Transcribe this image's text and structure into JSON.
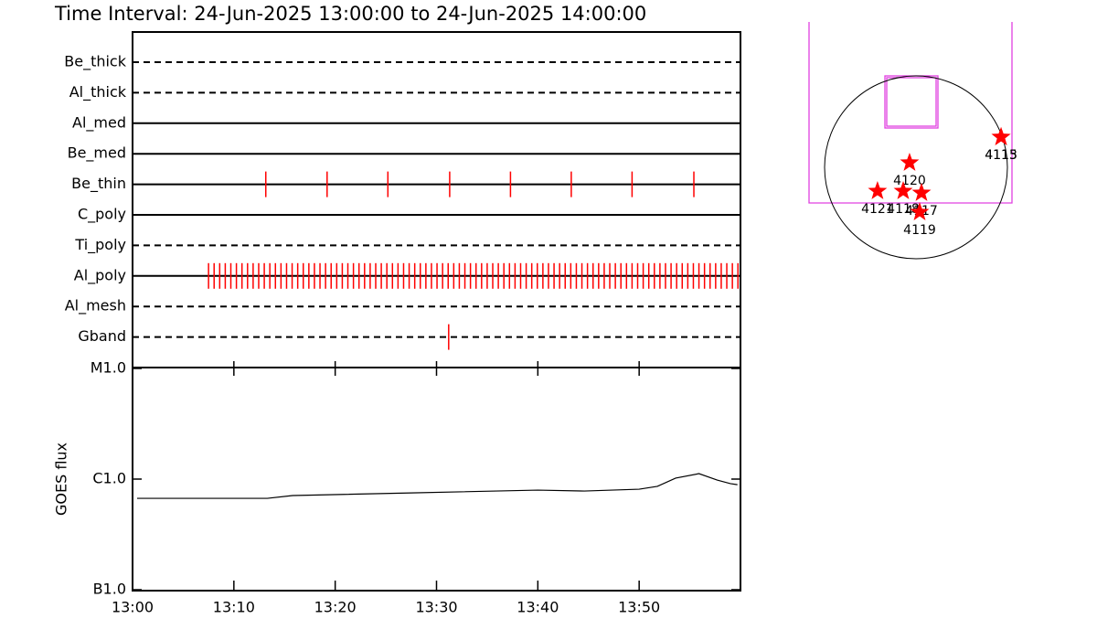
{
  "title": "Time Interval: 24-Jun-2025 13:00:00 to 24-Jun-2025 14:00:00",
  "chart_data": [
    {
      "type": "timeline",
      "categories": [
        "Be_thick",
        "Al_thick",
        "Al_med",
        "Be_med",
        "Be_thin",
        "C_poly",
        "Ti_poly",
        "Al_poly",
        "Al_mesh",
        "Gband"
      ],
      "line_styles": [
        "dashed",
        "dashed",
        "solid",
        "solid",
        "solid",
        "solid",
        "dashed",
        "solid",
        "dashed",
        "dashed"
      ],
      "xlim": [
        0,
        60
      ],
      "color": "#ff0000",
      "events": [
        [],
        [],
        [],
        [],
        [
          13.15,
          19.2,
          25.2,
          31.3,
          37.3,
          43.3,
          49.3,
          55.4
        ],
        [],
        [],
        [
          7.5,
          8.05,
          8.6,
          9.15,
          9.7,
          10.25,
          10.8,
          11.35,
          11.9,
          12.45,
          13.0,
          13.55,
          14.1,
          14.65,
          15.2,
          15.75,
          16.3,
          16.85,
          17.4,
          17.95,
          18.5,
          19.05,
          19.6,
          20.15,
          20.7,
          21.25,
          21.8,
          22.35,
          22.9,
          23.45,
          24.0,
          24.55,
          25.1,
          25.65,
          26.2,
          26.75,
          27.3,
          27.85,
          28.4,
          28.95,
          29.5,
          30.05,
          30.6,
          31.15,
          31.7,
          32.25,
          32.8,
          33.35,
          33.9,
          34.45,
          35.0,
          35.55,
          36.1,
          36.65,
          37.2,
          37.75,
          38.3,
          38.85,
          39.4,
          39.95,
          40.5,
          41.05,
          41.6,
          42.15,
          42.7,
          43.25,
          43.8,
          44.35,
          44.9,
          45.45,
          46.0,
          46.55,
          47.1,
          47.65,
          48.2,
          48.75,
          49.3,
          49.85,
          50.4,
          50.95,
          51.5,
          52.05,
          52.6,
          53.15,
          53.7,
          54.25,
          54.8,
          55.35,
          55.9,
          56.45,
          57.0,
          57.55,
          58.1,
          58.65,
          59.2,
          59.75
        ],
        [],
        [
          31.2
        ]
      ]
    },
    {
      "type": "line",
      "ylabel": "GOES flux",
      "log": true,
      "color": "#000000",
      "xlim": [
        0,
        60
      ],
      "xticks": [
        {
          "value": 0,
          "label": "13:00"
        },
        {
          "value": 10,
          "label": "13:10"
        },
        {
          "value": 20,
          "label": "13:20"
        },
        {
          "value": 30,
          "label": "13:30"
        },
        {
          "value": 40,
          "label": "13:40"
        },
        {
          "value": 50,
          "label": "13:50"
        }
      ],
      "ylim": [
        1e-07,
        1e-05
      ],
      "yticks": [
        {
          "value": 1e-05,
          "label": "M1.0"
        },
        {
          "value": 1e-06,
          "label": "C1.0"
        },
        {
          "value": 1e-07,
          "label": "B1.0"
        }
      ],
      "x": [
        0.45,
        13.3,
        15.8,
        27.5,
        40,
        44.6,
        50,
        51.8,
        53.6,
        55.9,
        57.7,
        59,
        59.7
      ],
      "values": [
        6.7e-07,
        6.7e-07,
        7.1e-07,
        7.5e-07,
        7.95e-07,
        7.8e-07,
        8.1e-07,
        8.6e-07,
        1.02e-06,
        1.12e-06,
        9.8e-07,
        9.1e-07,
        8.9e-07
      ]
    },
    {
      "type": "map",
      "solar_radius": 950,
      "color": "#ff0000",
      "labels": [
        "4120",
        "4121",
        "4118",
        "4117",
        "4119",
        "4113",
        "4115"
      ],
      "x": [
        -67,
        -400,
        -133,
        57,
        38,
        884,
        884
      ],
      "y": [
        48,
        -247,
        -247,
        -266,
        -466,
        314,
        314
      ]
    }
  ]
}
